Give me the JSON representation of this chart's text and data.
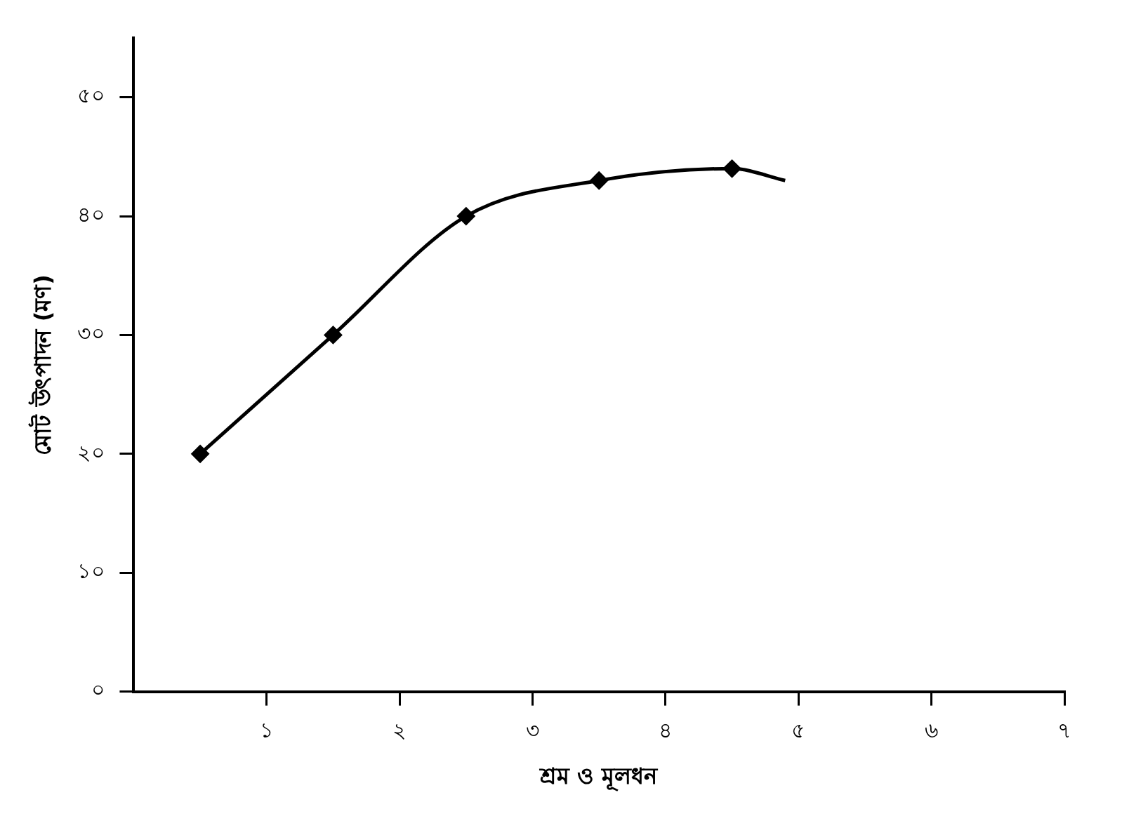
{
  "chart_data": {
    "type": "line",
    "xlabel": "শ্রম ও মূলধন",
    "ylabel": "মোট উৎপাদন (মণ)",
    "series": [
      {
        "color": "#000000",
        "marker": "none",
        "x": [
          0.5,
          1.5,
          2.5,
          3.5,
          4.5,
          4.9
        ],
        "values": [
          20,
          30,
          40,
          43,
          44,
          43
        ]
      },
      {
        "type": "scatter",
        "color": "#000000",
        "marker": "diamond",
        "x": [
          0.5,
          1.5,
          2.5,
          3.5,
          4.5
        ],
        "values": [
          20,
          30,
          40,
          43,
          44
        ]
      }
    ],
    "xlim": [
      0,
      7
    ],
    "xticks": [
      {
        "value": 1,
        "label": "১"
      },
      {
        "value": 2,
        "label": "২"
      },
      {
        "value": 3,
        "label": "৩"
      },
      {
        "value": 4,
        "label": "৪"
      },
      {
        "value": 5,
        "label": "৫"
      },
      {
        "value": 6,
        "label": "৬"
      },
      {
        "value": 7,
        "label": "৭"
      }
    ],
    "ylim": [
      0,
      55
    ],
    "yticks": [
      {
        "value": 0,
        "label": "০"
      },
      {
        "value": 10,
        "label": "১০"
      },
      {
        "value": 20,
        "label": "২০"
      },
      {
        "value": 30,
        "label": "৩০"
      },
      {
        "value": 40,
        "label": "৪০"
      },
      {
        "value": 50,
        "label": "৫০"
      }
    ],
    "grid": false,
    "legend": false
  }
}
